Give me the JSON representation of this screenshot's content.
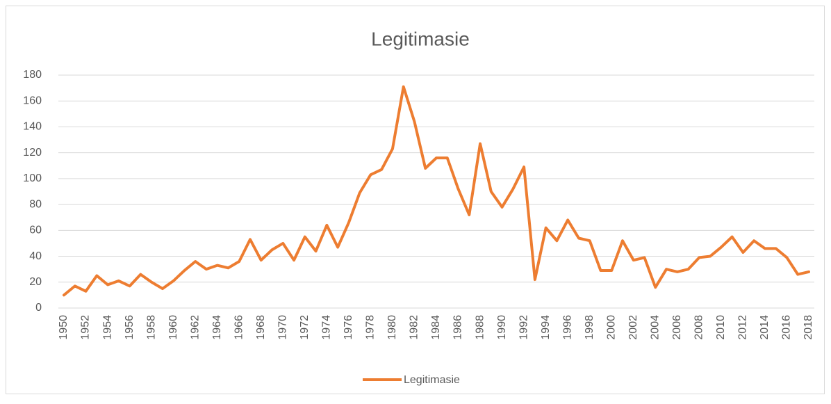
{
  "chart_data": {
    "type": "line",
    "title": "Legitimasie",
    "x": [
      1950,
      1951,
      1952,
      1953,
      1954,
      1955,
      1956,
      1957,
      1958,
      1959,
      1960,
      1961,
      1962,
      1963,
      1964,
      1965,
      1966,
      1967,
      1968,
      1969,
      1970,
      1971,
      1972,
      1973,
      1974,
      1975,
      1976,
      1977,
      1978,
      1979,
      1980,
      1981,
      1982,
      1983,
      1984,
      1985,
      1986,
      1987,
      1988,
      1989,
      1990,
      1991,
      1992,
      1993,
      1994,
      1995,
      1996,
      1997,
      1998,
      1999,
      2000,
      2001,
      2002,
      2003,
      2004,
      2005,
      2006,
      2007,
      2008,
      2009,
      2010,
      2011,
      2012,
      2013,
      2014,
      2015,
      2016,
      2017,
      2018
    ],
    "series": [
      {
        "name": "Legitimasie",
        "color": "#ed7d31",
        "values": [
          10,
          17,
          13,
          25,
          18,
          21,
          17,
          26,
          20,
          15,
          21,
          29,
          36,
          30,
          33,
          31,
          36,
          53,
          37,
          45,
          50,
          37,
          55,
          44,
          64,
          47,
          66,
          89,
          103,
          107,
          123,
          171,
          144,
          108,
          116,
          116,
          92,
          72,
          127,
          90,
          78,
          92,
          109,
          22,
          62,
          52,
          68,
          54,
          52,
          29,
          29,
          52,
          37,
          39,
          16,
          30,
          28,
          30,
          39,
          40,
          47,
          55,
          43,
          52,
          46,
          46,
          39,
          26,
          28
        ]
      }
    ],
    "xlim": [
      1950,
      2018
    ],
    "xticks": [
      1950,
      1952,
      1954,
      1956,
      1958,
      1960,
      1962,
      1964,
      1966,
      1968,
      1970,
      1972,
      1974,
      1976,
      1978,
      1980,
      1982,
      1984,
      1986,
      1988,
      1990,
      1992,
      1994,
      1996,
      1998,
      2000,
      2002,
      2004,
      2006,
      2008,
      2010,
      2012,
      2014,
      2016,
      2018
    ],
    "ylim": [
      0,
      180
    ],
    "yticks": [
      0,
      20,
      40,
      60,
      80,
      100,
      120,
      140,
      160,
      180
    ],
    "grid": true,
    "legend": "bottom"
  }
}
